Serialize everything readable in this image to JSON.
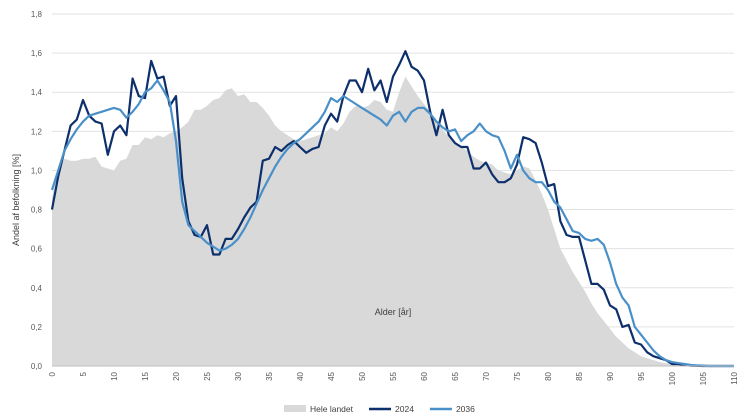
{
  "chart_data": {
    "type": "area",
    "xlabel": "Alder [år]",
    "ylabel": "Andel af befolkning [%]",
    "xlim": [
      0,
      110
    ],
    "ylim": [
      0,
      1.8
    ],
    "x_ticks": [
      "0",
      "5",
      "10",
      "15",
      "20",
      "25",
      "30",
      "35",
      "40",
      "45",
      "50",
      "55",
      "60",
      "65",
      "70",
      "75",
      "80",
      "85",
      "90",
      "95",
      "100",
      "105",
      "110"
    ],
    "y_ticks": [
      "0,0",
      "0,2",
      "0,4",
      "0,6",
      "0,8",
      "1,0",
      "1,2",
      "1,4",
      "1,6",
      "1,8"
    ],
    "grid": "horizontal",
    "legend_position": "bottom",
    "x": [
      0,
      1,
      2,
      3,
      4,
      5,
      6,
      7,
      8,
      9,
      10,
      11,
      12,
      13,
      14,
      15,
      16,
      17,
      18,
      19,
      20,
      21,
      22,
      23,
      24,
      25,
      26,
      27,
      28,
      29,
      30,
      31,
      32,
      33,
      34,
      35,
      36,
      37,
      38,
      39,
      40,
      41,
      42,
      43,
      44,
      45,
      46,
      47,
      48,
      49,
      50,
      51,
      52,
      53,
      54,
      55,
      56,
      57,
      58,
      59,
      60,
      61,
      62,
      63,
      64,
      65,
      66,
      67,
      68,
      69,
      70,
      71,
      72,
      73,
      74,
      75,
      76,
      77,
      78,
      79,
      80,
      81,
      82,
      83,
      84,
      85,
      86,
      87,
      88,
      89,
      90,
      91,
      92,
      93,
      94,
      95,
      96,
      97,
      98,
      99,
      100,
      101,
      102,
      103,
      104,
      105,
      106,
      107,
      108,
      109,
      110
    ],
    "series": [
      {
        "name": "Hele landet",
        "kind": "area",
        "color": "#d9d9d9",
        "values": [
          0.86,
          1.02,
          1.06,
          1.05,
          1.05,
          1.06,
          1.06,
          1.07,
          1.02,
          1.01,
          1.0,
          1.05,
          1.06,
          1.13,
          1.13,
          1.17,
          1.16,
          1.18,
          1.17,
          1.19,
          1.2,
          1.22,
          1.25,
          1.31,
          1.31,
          1.33,
          1.36,
          1.37,
          1.41,
          1.42,
          1.38,
          1.39,
          1.35,
          1.35,
          1.32,
          1.28,
          1.23,
          1.2,
          1.18,
          1.16,
          1.15,
          1.16,
          1.17,
          1.18,
          1.19,
          1.22,
          1.2,
          1.24,
          1.3,
          1.33,
          1.32,
          1.33,
          1.36,
          1.35,
          1.31,
          1.3,
          1.4,
          1.48,
          1.43,
          1.38,
          1.34,
          1.3,
          1.25,
          1.21,
          1.17,
          1.14,
          1.12,
          1.1,
          1.07,
          1.05,
          1.04,
          1.03,
          1.0,
          0.99,
          0.98,
          1.0,
          1.02,
          1.01,
          0.95,
          0.88,
          0.8,
          0.7,
          0.6,
          0.54,
          0.48,
          0.43,
          0.38,
          0.32,
          0.27,
          0.23,
          0.19,
          0.15,
          0.12,
          0.09,
          0.07,
          0.05,
          0.04,
          0.03,
          0.02,
          0.015,
          0.01,
          0.005,
          0.003,
          0.002,
          0.001,
          0,
          0,
          0,
          0,
          0,
          0
        ]
      },
      {
        "name": "2024",
        "kind": "line",
        "color": "#0d2f6b",
        "values": [
          0.8,
          0.97,
          1.1,
          1.23,
          1.26,
          1.36,
          1.28,
          1.25,
          1.24,
          1.08,
          1.2,
          1.23,
          1.18,
          1.47,
          1.38,
          1.37,
          1.56,
          1.47,
          1.48,
          1.33,
          1.38,
          0.96,
          0.74,
          0.67,
          0.66,
          0.72,
          0.57,
          0.57,
          0.65,
          0.65,
          0.7,
          0.76,
          0.81,
          0.84,
          1.05,
          1.06,
          1.12,
          1.1,
          1.13,
          1.15,
          1.12,
          1.09,
          1.11,
          1.12,
          1.23,
          1.29,
          1.25,
          1.38,
          1.46,
          1.46,
          1.4,
          1.52,
          1.41,
          1.46,
          1.35,
          1.48,
          1.54,
          1.61,
          1.53,
          1.51,
          1.46,
          1.3,
          1.18,
          1.31,
          1.18,
          1.14,
          1.12,
          1.12,
          1.01,
          1.01,
          1.04,
          0.98,
          0.94,
          0.94,
          0.96,
          1.03,
          1.17,
          1.16,
          1.14,
          1.04,
          0.92,
          0.93,
          0.74,
          0.67,
          0.66,
          0.66,
          0.54,
          0.42,
          0.42,
          0.39,
          0.31,
          0.29,
          0.2,
          0.21,
          0.12,
          0.11,
          0.07,
          0.05,
          0.04,
          0.03,
          0.01,
          0.01,
          0.005,
          0.002,
          0.001,
          0,
          0,
          0,
          0,
          0,
          0
        ]
      },
      {
        "name": "2036",
        "kind": "line",
        "color": "#4a90c8",
        "values": [
          0.9,
          1.0,
          1.1,
          1.16,
          1.21,
          1.25,
          1.28,
          1.29,
          1.3,
          1.31,
          1.32,
          1.31,
          1.27,
          1.3,
          1.34,
          1.4,
          1.42,
          1.46,
          1.41,
          1.35,
          1.15,
          0.84,
          0.72,
          0.69,
          0.66,
          0.63,
          0.61,
          0.59,
          0.6,
          0.62,
          0.65,
          0.7,
          0.76,
          0.83,
          0.9,
          0.96,
          1.02,
          1.07,
          1.11,
          1.14,
          1.16,
          1.19,
          1.22,
          1.25,
          1.3,
          1.37,
          1.35,
          1.38,
          1.36,
          1.34,
          1.32,
          1.3,
          1.28,
          1.26,
          1.23,
          1.28,
          1.3,
          1.25,
          1.3,
          1.32,
          1.32,
          1.29,
          1.25,
          1.22,
          1.2,
          1.21,
          1.15,
          1.18,
          1.2,
          1.24,
          1.2,
          1.18,
          1.17,
          1.1,
          1.01,
          1.08,
          1.0,
          0.96,
          0.94,
          0.94,
          0.9,
          0.84,
          0.81,
          0.75,
          0.69,
          0.68,
          0.65,
          0.64,
          0.65,
          0.62,
          0.53,
          0.42,
          0.35,
          0.31,
          0.2,
          0.16,
          0.12,
          0.08,
          0.05,
          0.03,
          0.02,
          0.015,
          0.01,
          0.005,
          0.003,
          0.002,
          0,
          0,
          0,
          0,
          0
        ]
      }
    ]
  }
}
